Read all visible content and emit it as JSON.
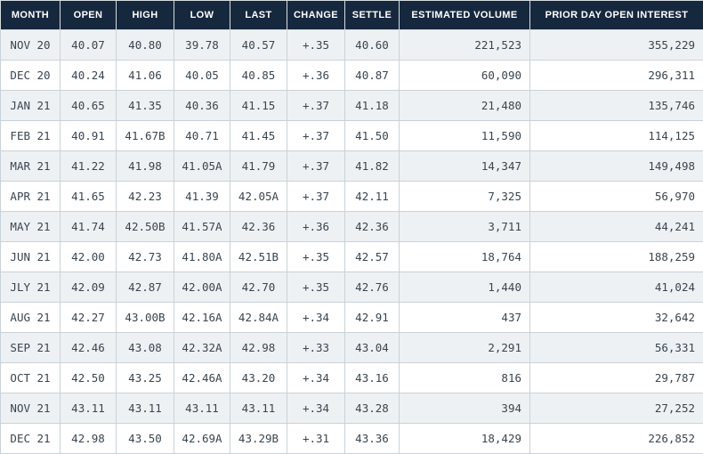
{
  "chart_data": {
    "type": "table",
    "columns": [
      {
        "key": "month",
        "label": "MONTH"
      },
      {
        "key": "open",
        "label": "OPEN"
      },
      {
        "key": "high",
        "label": "HIGH"
      },
      {
        "key": "low",
        "label": "LOW"
      },
      {
        "key": "last",
        "label": "LAST"
      },
      {
        "key": "change",
        "label": "CHANGE"
      },
      {
        "key": "settle",
        "label": "SETTLE"
      },
      {
        "key": "volume",
        "label": "ESTIMATED VOLUME"
      },
      {
        "key": "open_interest",
        "label": "PRIOR DAY OPEN INTEREST"
      }
    ],
    "rows": [
      [
        "NOV 20",
        "40.07",
        "40.80",
        "39.78",
        "40.57",
        "+.35",
        "40.60",
        "221,523",
        "355,229"
      ],
      [
        "DEC 20",
        "40.24",
        "41.06",
        "40.05",
        "40.85",
        "+.36",
        "40.87",
        "60,090",
        "296,311"
      ],
      [
        "JAN 21",
        "40.65",
        "41.35",
        "40.36",
        "41.15",
        "+.37",
        "41.18",
        "21,480",
        "135,746"
      ],
      [
        "FEB 21",
        "40.91",
        "41.67B",
        "40.71",
        "41.45",
        "+.37",
        "41.50",
        "11,590",
        "114,125"
      ],
      [
        "MAR 21",
        "41.22",
        "41.98",
        "41.05A",
        "41.79",
        "+.37",
        "41.82",
        "14,347",
        "149,498"
      ],
      [
        "APR 21",
        "41.65",
        "42.23",
        "41.39",
        "42.05A",
        "+.37",
        "42.11",
        "7,325",
        "56,970"
      ],
      [
        "MAY 21",
        "41.74",
        "42.50B",
        "41.57A",
        "42.36",
        "+.36",
        "42.36",
        "3,711",
        "44,241"
      ],
      [
        "JUN 21",
        "42.00",
        "42.73",
        "41.80A",
        "42.51B",
        "+.35",
        "42.57",
        "18,764",
        "188,259"
      ],
      [
        "JLY 21",
        "42.09",
        "42.87",
        "42.00A",
        "42.70",
        "+.35",
        "42.76",
        "1,440",
        "41,024"
      ],
      [
        "AUG 21",
        "42.27",
        "43.00B",
        "42.16A",
        "42.84A",
        "+.34",
        "42.91",
        "437",
        "32,642"
      ],
      [
        "SEP 21",
        "42.46",
        "43.08",
        "42.32A",
        "42.98",
        "+.33",
        "43.04",
        "2,291",
        "56,331"
      ],
      [
        "OCT 21",
        "42.50",
        "43.25",
        "42.46A",
        "43.20",
        "+.34",
        "43.16",
        "816",
        "29,787"
      ],
      [
        "NOV 21",
        "43.11",
        "43.11",
        "43.11",
        "43.11",
        "+.34",
        "43.28",
        "394",
        "27,252"
      ],
      [
        "DEC 21",
        "42.98",
        "43.50",
        "42.69A",
        "43.29B",
        "+.31",
        "43.36",
        "18,429",
        "226,852"
      ]
    ]
  },
  "colors": {
    "header_bg": "#16283e",
    "header_text": "#ffffff",
    "row_bg": "#ffffff",
    "row_alt_bg": "#eef1f4",
    "body_text": "#3a454e",
    "border": "#c9d2d8"
  }
}
